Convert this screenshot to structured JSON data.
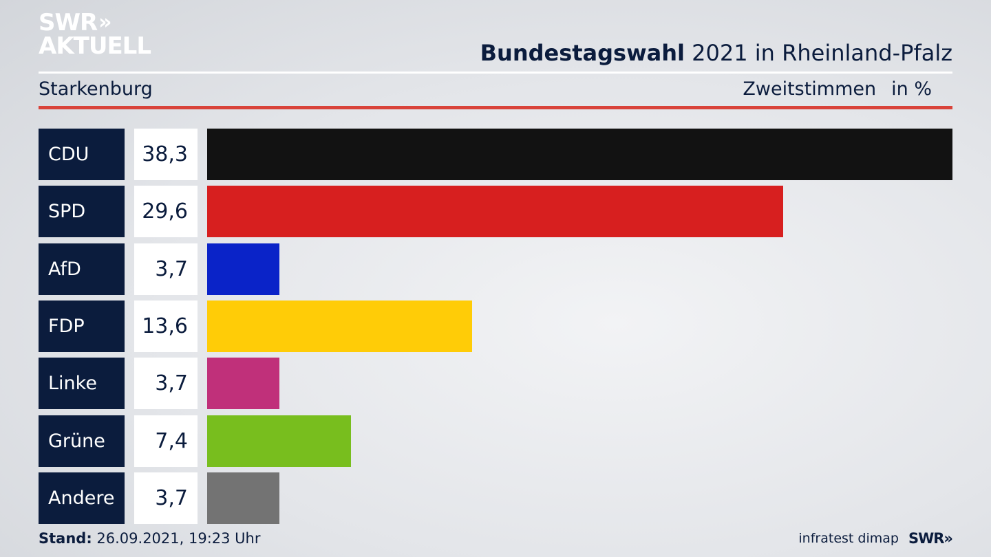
{
  "logo": {
    "line1": "SWR",
    "line1_chevrons": "»",
    "line2": "AKTUELL"
  },
  "header": {
    "title_bold": "Bundestagswahl",
    "title_rest": " 2021 in Rheinland-Pfalz",
    "region": "Starkenburg",
    "measure": "Zweitstimmen",
    "unit": "in %"
  },
  "chart_data": {
    "type": "bar",
    "orientation": "horizontal",
    "categories": [
      "CDU",
      "SPD",
      "AfD",
      "FDP",
      "Linke",
      "Grüne",
      "Andere"
    ],
    "values": [
      38.3,
      29.6,
      3.7,
      13.6,
      3.7,
      7.4,
      3.7
    ],
    "value_labels": [
      "38,3",
      "29,6",
      "3,7",
      "13,6",
      "3,7",
      "7,4",
      "3,7"
    ],
    "colors": [
      "#121212",
      "#d71f1f",
      "#0a23c8",
      "#ffcc07",
      "#c0307a",
      "#78be1e",
      "#737373"
    ],
    "xlim": [
      0,
      38.3
    ],
    "grid": false,
    "legend": "none"
  },
  "footer": {
    "stand_label": "Stand:",
    "stand_value": " 26.09.2021, 19:23 Uhr",
    "source": "infratest dimap",
    "brand": "SWR",
    "brand_chevrons": "»"
  }
}
